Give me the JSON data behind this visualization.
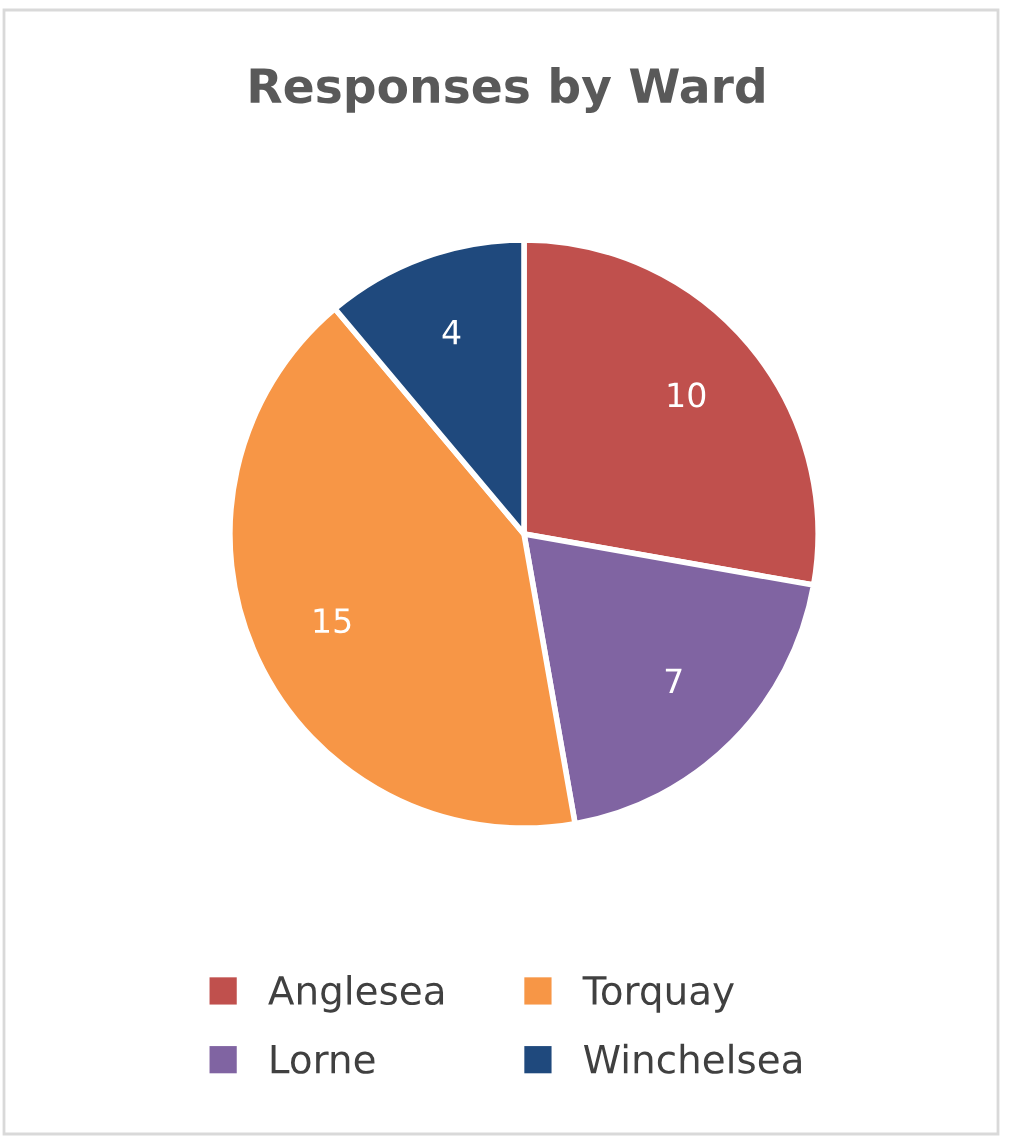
{
  "chart_data": {
    "type": "pie",
    "title": "Responses by Ward",
    "categories": [
      "Anglesea",
      "Lorne",
      "Torquay",
      "Winchelsea"
    ],
    "values": [
      10,
      7,
      15,
      4
    ],
    "colors": [
      "#c0504d",
      "#8064a2",
      "#f79646",
      "#1f497d"
    ],
    "data_labels": true,
    "legend": "bottom"
  }
}
